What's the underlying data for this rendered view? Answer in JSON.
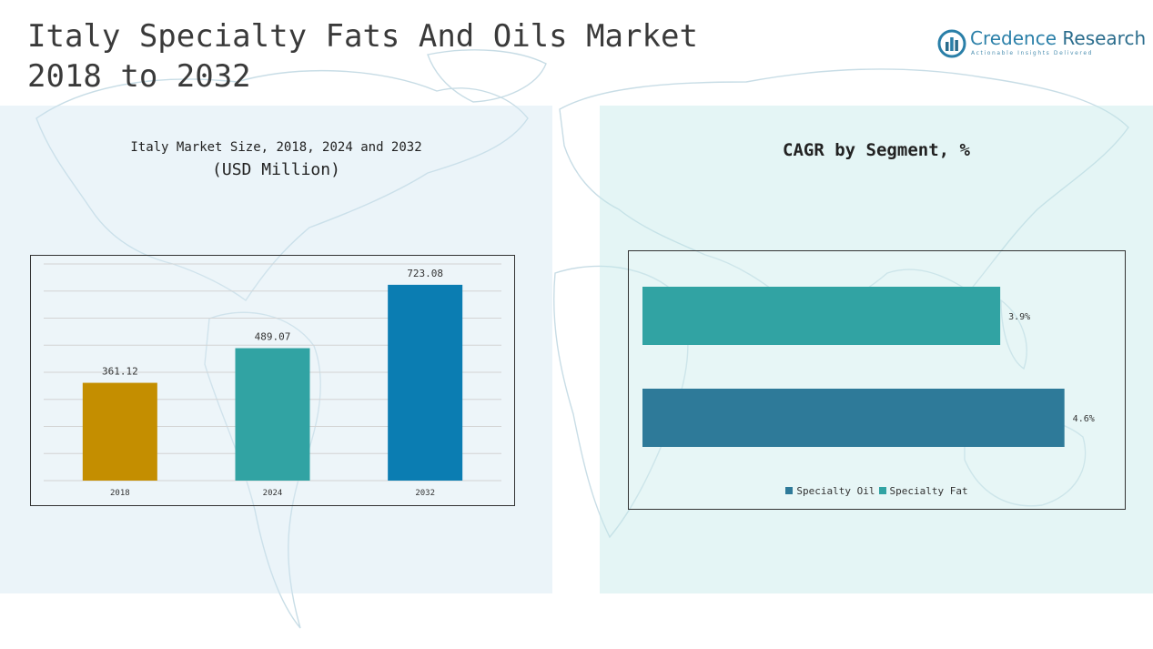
{
  "page": {
    "title": "Italy Specialty Fats And Oils Market\n2018 to 2032"
  },
  "logo": {
    "name_part1": "Credence",
    "name_part2": "Research",
    "tagline": "Actionable Insights Delivered",
    "colors": {
      "primary": "#2a7fa8",
      "secondary": "#2a6c8c"
    }
  },
  "left_panel": {
    "subtitle": "Italy Market Size, 2018, 2024 and 2032",
    "unit": "(USD Million)"
  },
  "right_panel": {
    "title": "CAGR by Segment, %"
  },
  "chart_data": [
    {
      "type": "bar",
      "title": "Italy Market Size, 2018, 2024 and 2032",
      "subtitle": "(USD Million)",
      "categories": [
        "2018",
        "2024",
        "2032"
      ],
      "values": [
        361.12,
        489.07,
        723.08
      ],
      "value_labels": [
        "361.12",
        "489.07",
        "723.08"
      ],
      "colors": [
        "#c48e00",
        "#31a3a3",
        "#0b7db2"
      ],
      "ylim": [
        0,
        800
      ],
      "grid": true,
      "legend": "none"
    },
    {
      "type": "bar",
      "orientation": "horizontal",
      "title": "CAGR by Segment, %",
      "series": [
        {
          "name": "Specialty Fat",
          "value": 3.9,
          "label": "3.9%",
          "color": "#31a3a3"
        },
        {
          "name": "Specialty Oil",
          "value": 4.6,
          "label": "4.6%",
          "color": "#2e7a99"
        }
      ],
      "xlim": [
        0,
        5
      ],
      "grid": false,
      "legend": "bottom-center",
      "legend_order": [
        "Specialty Oil",
        "Specialty Fat"
      ]
    }
  ]
}
